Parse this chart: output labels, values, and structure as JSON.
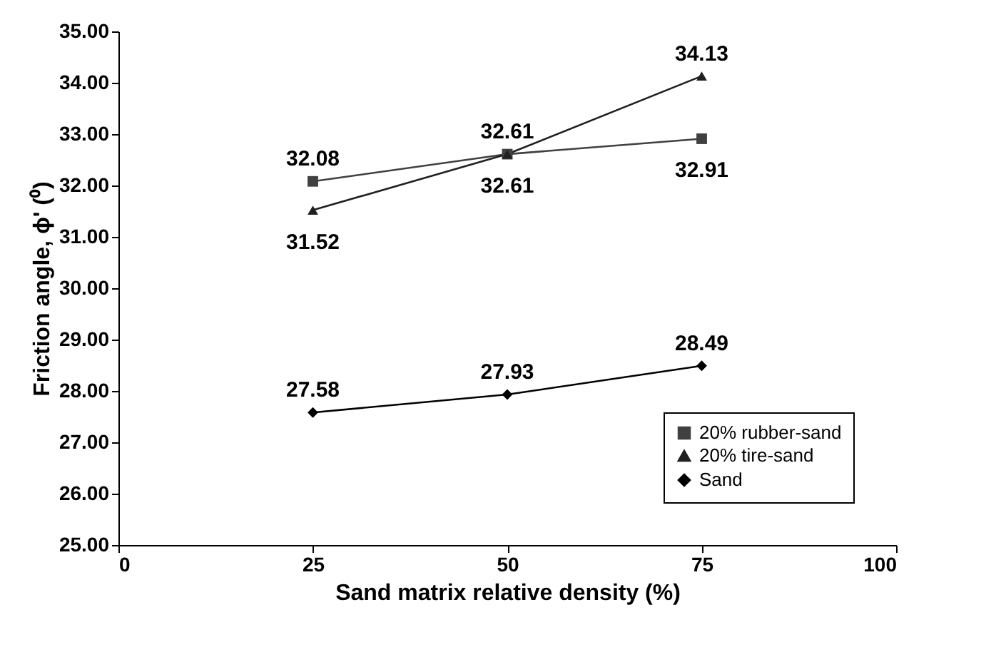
{
  "chart_data": {
    "type": "line",
    "xlabel": "Sand matrix relative density (%)",
    "ylabel": "Friction angle, ϕ' (⁰)",
    "x": [
      25,
      50,
      75
    ],
    "series": [
      {
        "name": "20% rubber-sand",
        "color": "#404040",
        "marker": "square",
        "values": [
          32.08,
          32.61,
          32.91
        ]
      },
      {
        "name": "20% tire-sand",
        "color": "#202020",
        "marker": "triangle",
        "values": [
          31.52,
          32.61,
          34.13
        ]
      },
      {
        "name": "Sand",
        "color": "#000000",
        "marker": "diamond",
        "values": [
          27.58,
          27.93,
          28.49
        ]
      }
    ],
    "xlim": [
      0,
      100
    ],
    "xticks": [
      0,
      25,
      50,
      75,
      100
    ],
    "ylim": [
      25,
      35
    ],
    "yticks": [
      {
        "value": 25,
        "label": "25.00"
      },
      {
        "value": 26,
        "label": "26.00"
      },
      {
        "value": 27,
        "label": "27.00"
      },
      {
        "value": 28,
        "label": "28.00"
      },
      {
        "value": 29,
        "label": "29.00"
      },
      {
        "value": 30,
        "label": "30.00"
      },
      {
        "value": 31,
        "label": "31.00"
      },
      {
        "value": 32,
        "label": "32.00"
      },
      {
        "value": 33,
        "label": "33.00"
      },
      {
        "value": 34,
        "label": "34.00"
      },
      {
        "value": 35,
        "label": "35.00"
      }
    ],
    "grid": false,
    "legend": "bottom right",
    "data_labels": true,
    "line_style": "solid"
  }
}
